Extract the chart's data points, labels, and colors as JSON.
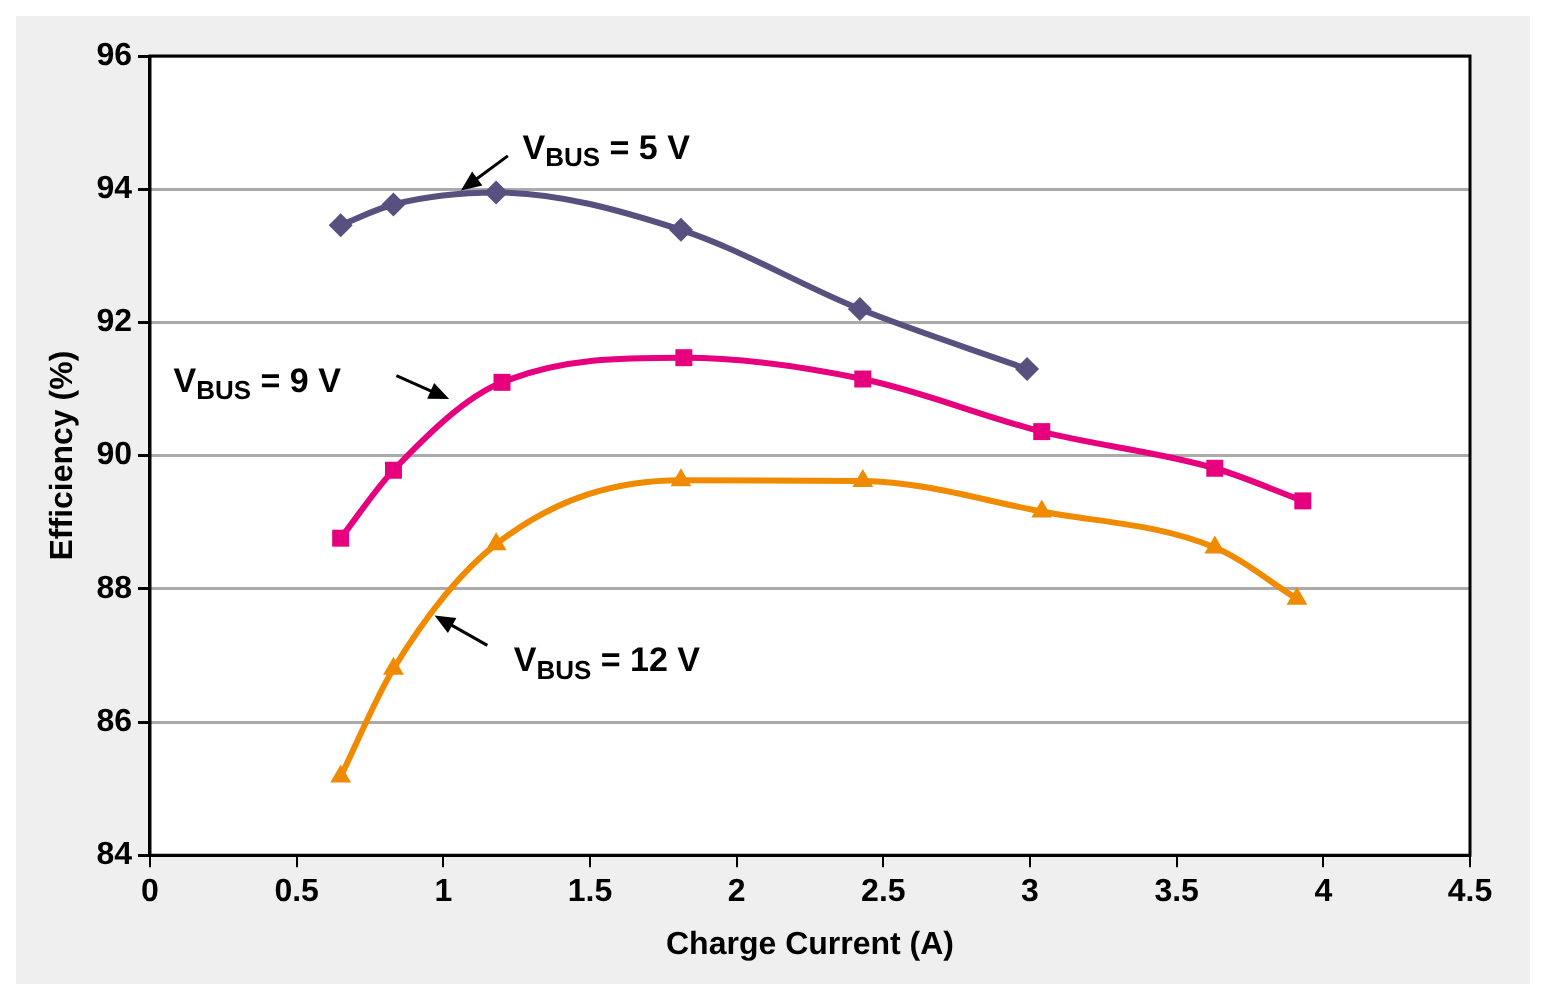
{
  "chart_data": {
    "type": "line",
    "xlabel": "Charge Current (A)",
    "ylabel": "Efficiency (%)",
    "xlim": [
      0,
      4.5
    ],
    "xticks": [
      0,
      0.5,
      1,
      1.5,
      2,
      2.5,
      3,
      3.5,
      4,
      4.5
    ],
    "ylim": [
      84,
      96
    ],
    "yticks": [
      84,
      86,
      88,
      90,
      92,
      94,
      96
    ],
    "grid": "y",
    "legend": false,
    "series": [
      {
        "name": "V$_{BUS}$ = 5 V",
        "color": "#58507e",
        "marker": "diamond",
        "x": [
          0.65,
          0.83,
          1.18,
          1.81,
          2.42,
          2.99
        ],
        "values": [
          93.46,
          93.77,
          93.95,
          93.39,
          92.2,
          91.3
        ]
      },
      {
        "name": "V$_{BUS}$ = 9 V",
        "color": "#e6007e",
        "marker": "square",
        "x": [
          0.65,
          0.83,
          1.2,
          1.82,
          2.43,
          3.04,
          3.63,
          3.93
        ],
        "values": [
          88.76,
          89.78,
          91.1,
          91.47,
          91.15,
          90.36,
          89.81,
          89.32
        ]
      },
      {
        "name": "V$_{BUS}$ = 12 V",
        "color": "#f08a00",
        "marker": "triangle",
        "x": [
          0.65,
          0.83,
          1.18,
          1.81,
          2.43,
          3.04,
          3.63,
          3.91
        ],
        "values": [
          85.18,
          86.8,
          88.67,
          89.63,
          89.62,
          89.16,
          88.62,
          87.85
        ]
      }
    ]
  }
}
